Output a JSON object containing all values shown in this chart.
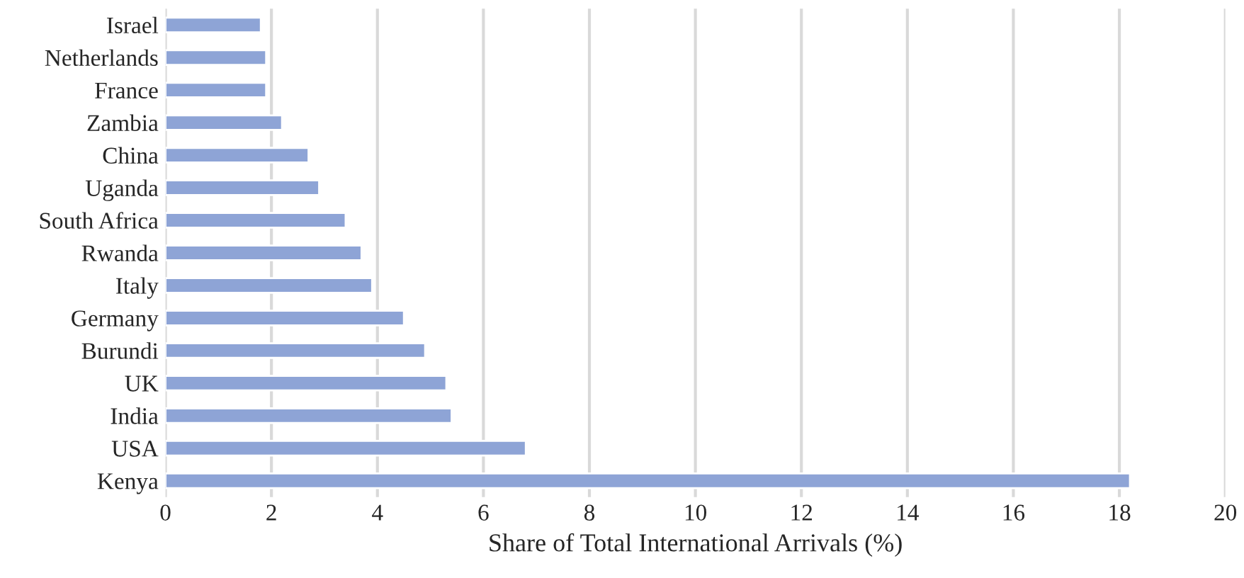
{
  "chart_data": {
    "type": "bar",
    "orientation": "horizontal",
    "xlabel": "Share of Total International Arrivals (%)",
    "categories": [
      "Israel",
      "Netherlands",
      "France",
      "Zambia",
      "China",
      "Uganda",
      "South Africa",
      "Rwanda",
      "Italy",
      "Germany",
      "Burundi",
      "UK",
      "India",
      "USA",
      "Kenya"
    ],
    "values": [
      1.8,
      1.9,
      1.9,
      2.2,
      2.7,
      2.9,
      3.4,
      3.7,
      3.9,
      4.5,
      4.9,
      5.3,
      5.4,
      6.8,
      18.2
    ],
    "color": "#8ea4d6",
    "xlim": [
      0,
      20
    ],
    "xticks": [
      0,
      2,
      4,
      6,
      8,
      10,
      12,
      14,
      16,
      18,
      20
    ],
    "grid": "x",
    "legend": false
  }
}
